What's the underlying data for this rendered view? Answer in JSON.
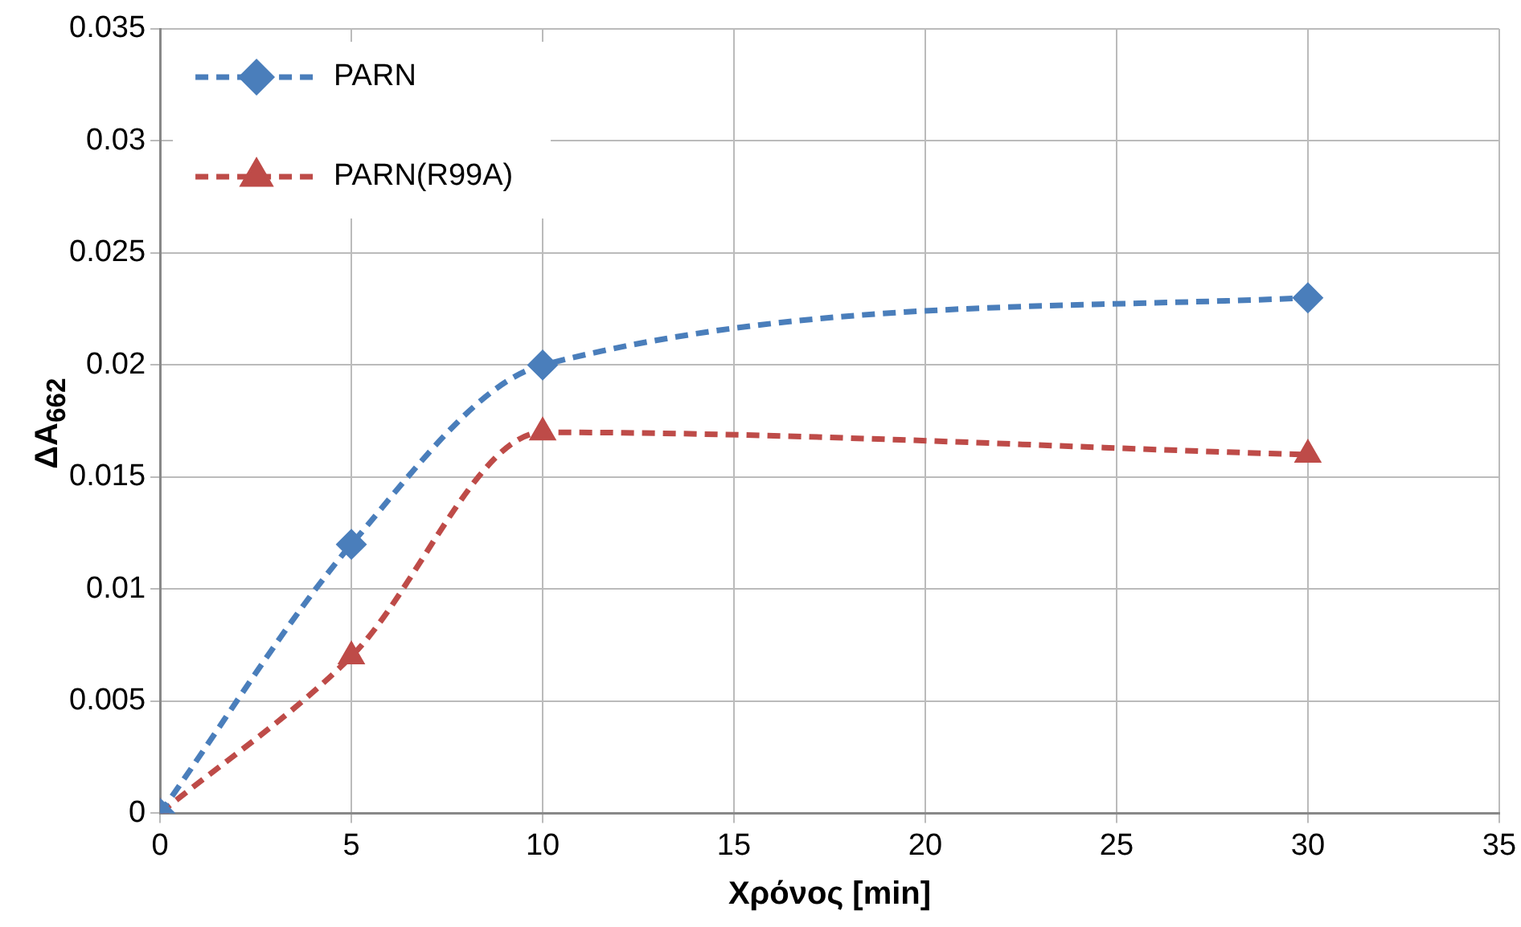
{
  "chart_data": {
    "type": "line",
    "xlabel": "Χρόνος [min]",
    "ylabel": "ΔA$_{662}$",
    "x": [
      0,
      5,
      10,
      30
    ],
    "series": [
      {
        "name": "PARN",
        "color": "#4a7ebb",
        "values": [
          0,
          0.012,
          0.02,
          0.023
        ],
        "marker": "diamond"
      },
      {
        "name": "PARN(R99A)",
        "color": "#be4b48",
        "values": [
          0,
          0.007,
          0.017,
          0.016
        ],
        "marker": "triangle"
      }
    ],
    "xlim": [
      0,
      35
    ],
    "xticks": [
      0,
      5,
      10,
      15,
      20,
      25,
      30,
      35
    ],
    "ylim": [
      0,
      0.035
    ],
    "yticks": [
      0,
      0.005,
      0.01,
      0.015,
      0.02,
      0.025,
      0.03,
      0.035
    ],
    "grid": true,
    "legend": "top left",
    "line_style": "dashed"
  }
}
